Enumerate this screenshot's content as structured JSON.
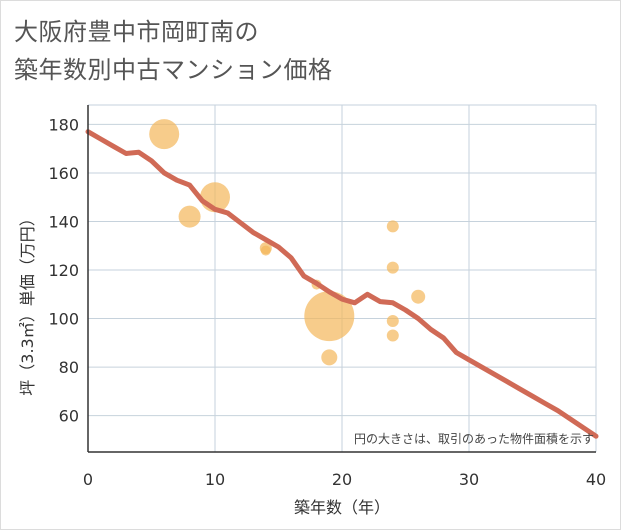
{
  "chart_data": {
    "type": "scatter",
    "title_lines": [
      "大阪府豊中市岡町南の",
      "築年数別中古マンション価格"
    ],
    "xlabel": "築年数（年）",
    "ylabel": "坪（3.3㎡）単価（万円）",
    "xlim": [
      0,
      40
    ],
    "ylim": [
      45,
      188
    ],
    "xticks": [
      0,
      10,
      20,
      30,
      40
    ],
    "yticks": [
      60,
      80,
      100,
      120,
      140,
      160,
      180
    ],
    "grid": true,
    "note": "円の大きさは、取引のあった物件面積を示す",
    "colors": {
      "bubble": "#f3b75a",
      "line": "#d06a56",
      "grid": "#c6d2dc",
      "axis": "#333333"
    },
    "bubbles": [
      {
        "x": 6,
        "y": 176,
        "size": 15
      },
      {
        "x": 8,
        "y": 142,
        "size": 11
      },
      {
        "x": 10,
        "y": 150,
        "size": 15
      },
      {
        "x": 14,
        "y": 129,
        "size": 6
      },
      {
        "x": 14,
        "y": 128,
        "size": 5
      },
      {
        "x": 18,
        "y": 114,
        "size": 5
      },
      {
        "x": 19,
        "y": 101,
        "size": 25
      },
      {
        "x": 19,
        "y": 84,
        "size": 8
      },
      {
        "x": 24,
        "y": 138,
        "size": 6
      },
      {
        "x": 24,
        "y": 121,
        "size": 6
      },
      {
        "x": 24,
        "y": 99,
        "size": 6
      },
      {
        "x": 24,
        "y": 93,
        "size": 6
      },
      {
        "x": 26,
        "y": 109,
        "size": 7
      }
    ],
    "series": [
      {
        "name": "trend",
        "x": [
          0,
          1,
          2,
          3,
          4,
          5,
          6,
          7,
          8,
          9,
          10,
          11,
          12,
          13,
          14,
          15,
          16,
          17,
          18,
          19,
          20,
          21,
          22,
          23,
          24,
          25,
          26,
          27,
          28,
          29,
          30,
          31,
          32,
          33,
          34,
          35,
          36,
          37,
          38,
          39,
          40
        ],
        "values": [
          177,
          174,
          171,
          168,
          168.5,
          165,
          160,
          157,
          155,
          148.5,
          145,
          143.5,
          139.5,
          135.5,
          132.5,
          129.5,
          125,
          117.5,
          114.5,
          111,
          108,
          106.5,
          110,
          107,
          106.5,
          103.5,
          100,
          95.5,
          92,
          86,
          83,
          80,
          77,
          74,
          71,
          68,
          65,
          62,
          58.5,
          55,
          51.5
        ]
      }
    ]
  }
}
